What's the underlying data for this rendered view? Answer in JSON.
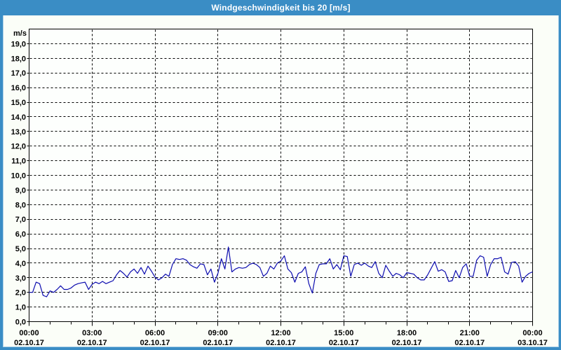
{
  "window": {
    "title": "Windgeschwindigkeit bis 20 [m/s]",
    "title_bar_color": "#3a8dc5",
    "border_color": "#3a8dc5",
    "inner_border_color": "#a9d0e8",
    "background_color": "#fbfef8",
    "plot_background_color": "#fdfffd"
  },
  "chart_data": {
    "type": "line",
    "title": "Windgeschwindigkeit bis 20 [m/s]",
    "unit_label": "m/s",
    "ylabel": "m/s",
    "xlabel": "",
    "ylim": [
      0,
      20
    ],
    "y_tick_step": 1.0,
    "y_tick_labels": [
      "19,0",
      "18,0",
      "17,0",
      "16,0",
      "15,0",
      "14,0",
      "13,0",
      "12,0",
      "11,0",
      "10,0",
      "9,0",
      "8,0",
      "7,0",
      "6,0",
      "5,0",
      "4,0",
      "3,0",
      "2,0",
      "1,0",
      "0,0"
    ],
    "grid": "dashed-black",
    "legend": "none",
    "x_axis": {
      "major_tick_interval_minutes": 180,
      "minor_tick_interval_minutes": 60,
      "major_ticks": [
        {
          "time": "00:00",
          "date": "02.10.17"
        },
        {
          "time": "03:00",
          "date": "02.10.17"
        },
        {
          "time": "06:00",
          "date": "02.10.17"
        },
        {
          "time": "09:00",
          "date": "02.10.17"
        },
        {
          "time": "12:00",
          "date": "02.10.17"
        },
        {
          "time": "15:00",
          "date": "02.10.17"
        },
        {
          "time": "18:00",
          "date": "02.10.17"
        },
        {
          "time": "21:00",
          "date": "02.10.17"
        },
        {
          "time": "00:00",
          "date": "03.10.17"
        }
      ]
    },
    "series": [
      {
        "name": "Windgeschwindigkeit",
        "color": "#0c0caf",
        "start_time_minutes": 0,
        "interval_minutes": 10,
        "values": [
          2.0,
          2.0,
          2.7,
          2.6,
          1.8,
          1.7,
          2.1,
          2.0,
          2.2,
          2.45,
          2.2,
          2.2,
          2.3,
          2.5,
          2.6,
          2.65,
          2.7,
          2.2,
          2.55,
          2.7,
          2.6,
          2.75,
          2.6,
          2.7,
          2.8,
          3.2,
          3.5,
          3.3,
          3.05,
          3.4,
          3.6,
          3.3,
          3.7,
          3.25,
          3.8,
          3.45,
          3.05,
          2.85,
          3.0,
          3.25,
          3.1,
          3.9,
          4.3,
          4.25,
          4.3,
          4.2,
          3.9,
          3.75,
          3.65,
          3.95,
          3.9,
          3.2,
          3.6,
          2.7,
          3.3,
          4.3,
          3.6,
          5.1,
          3.4,
          3.6,
          3.7,
          3.65,
          3.7,
          3.9,
          4.0,
          3.9,
          3.7,
          3.1,
          3.3,
          3.8,
          3.6,
          4.0,
          4.15,
          4.5,
          3.6,
          3.35,
          2.7,
          3.3,
          3.4,
          3.75,
          2.6,
          1.95,
          3.3,
          3.9,
          3.95,
          3.95,
          4.3,
          3.6,
          3.9,
          3.55,
          4.5,
          4.45,
          3.1,
          3.9,
          4.0,
          3.85,
          4.0,
          3.8,
          3.7,
          4.1,
          3.3,
          3.0,
          3.85,
          3.45,
          3.1,
          3.3,
          3.2,
          3.0,
          3.35,
          3.3,
          3.25,
          3.0,
          2.85,
          2.85,
          3.2,
          3.65,
          4.1,
          3.45,
          3.55,
          3.4,
          2.75,
          2.8,
          3.5,
          3.0,
          3.7,
          3.95,
          3.1,
          3.1,
          4.2,
          4.5,
          4.4,
          3.1,
          3.9,
          4.3,
          4.3,
          4.4,
          3.4,
          3.25,
          4.05,
          4.1,
          3.8,
          2.7,
          3.1,
          3.3,
          3.4
        ]
      }
    ]
  }
}
